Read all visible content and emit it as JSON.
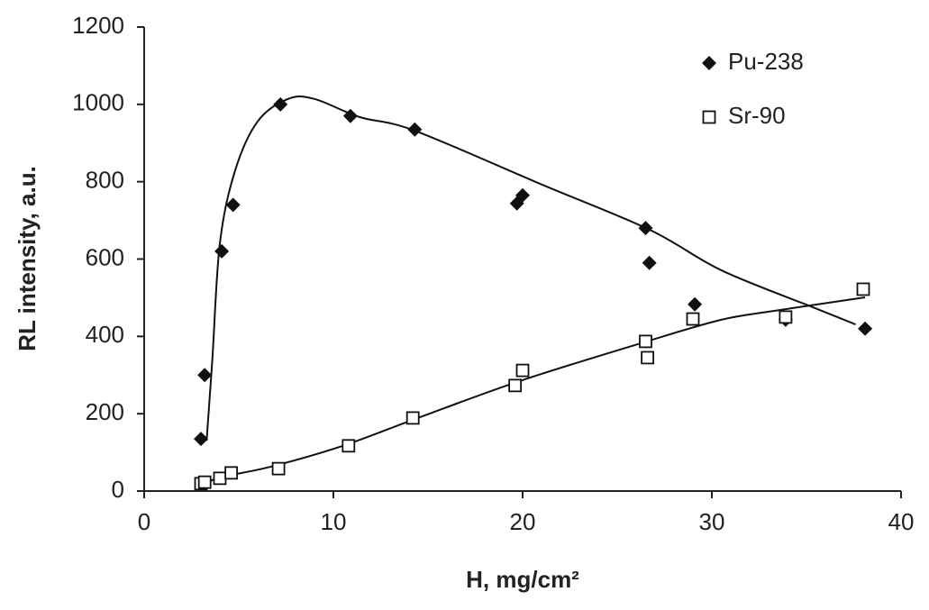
{
  "chart_data": {
    "type": "scatter",
    "xlabel": "H, mg/cm²",
    "ylabel": "RL intensity, a.u.",
    "xlim": [
      0,
      40
    ],
    "xticks": [
      0,
      10,
      20,
      30,
      40
    ],
    "ylim": [
      0,
      1200
    ],
    "yticks": [
      0,
      200,
      400,
      600,
      800,
      1000,
      1200
    ],
    "grid": false,
    "legend": "upper right",
    "series": [
      {
        "name": "Pu-238",
        "color": "#111111",
        "marker": "diamond",
        "x": [
          3.0,
          3.2,
          4.1,
          4.7,
          7.2,
          10.9,
          14.3,
          19.7,
          20.0,
          26.5,
          26.7,
          29.1,
          33.9,
          38.1
        ],
        "values": [
          135,
          300,
          620,
          740,
          1000,
          970,
          935,
          744,
          765,
          680,
          590,
          483,
          443,
          420
        ],
        "trendline": {
          "x": [
            3.3,
            3.6,
            4.0,
            4.8,
            6.0,
            7.6,
            9.0,
            11.4,
            14.3,
            21,
            26.7,
            30.5,
            35.2,
            37.6
          ],
          "values": [
            130,
            338,
            640,
            828,
            956,
            1014,
            1014,
            967,
            932,
            793,
            676,
            571,
            478,
            431
          ]
        }
      },
      {
        "name": "Sr-90",
        "color": "#111111",
        "marker": "square",
        "x": [
          3.0,
          3.2,
          4.0,
          4.6,
          7.1,
          10.8,
          14.2,
          19.6,
          20.0,
          26.5,
          26.6,
          29.0,
          33.9,
          38.0
        ],
        "values": [
          19,
          23,
          33,
          47,
          58,
          117,
          189,
          273,
          312,
          387,
          345,
          445,
          450,
          522
        ],
        "trendline": {
          "x": [
            2.9,
            4.0,
            6.7,
            10.5,
            14.3,
            20,
            26.7,
            30.5,
            33.3,
            38.1
          ],
          "values": [
            12,
            35,
            63,
            117,
            186,
            287,
            389,
            443,
            466,
            501
          ]
        }
      }
    ]
  }
}
